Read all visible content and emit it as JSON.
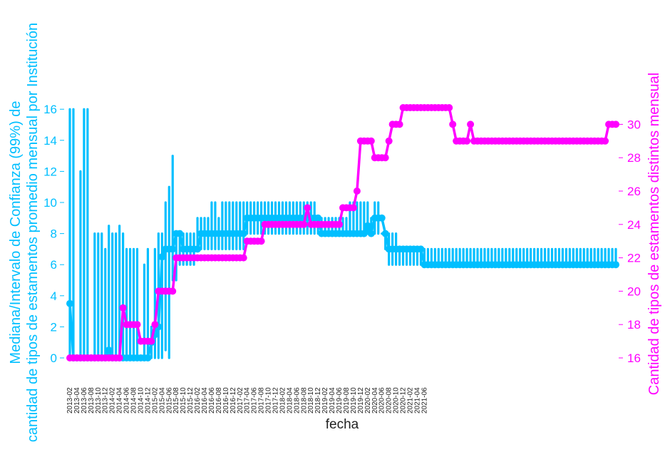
{
  "chart_data": {
    "type": "line",
    "xlabel": "fecha",
    "ylabel_left": "Mediana/Intervalo de Confianza (99%) de\ncantidad de tipos de estamentos promedio mensual por Institución",
    "ylabel_right": "Cantidad de tipos de estamentos distintos mensual",
    "left_yticks": [
      0,
      2,
      4,
      6,
      8,
      10,
      12,
      14,
      16
    ],
    "right_yticks": [
      16,
      18,
      20,
      22,
      24,
      26,
      28,
      30
    ],
    "xtick_labels": [
      "2013-02",
      "2013-04",
      "2013-06",
      "2013-08",
      "2013-10",
      "2013-12",
      "2014-02",
      "2014-04",
      "2014-06",
      "2014-08",
      "2014-10",
      "2014-12",
      "2015-02",
      "2015-04",
      "2015-06",
      "2015-08",
      "2015-10",
      "2015-12",
      "2016-02",
      "2016-04",
      "2016-06",
      "2016-08",
      "2016-10",
      "2016-12",
      "2017-02",
      "2017-04",
      "2017-06",
      "2017-08",
      "2017-10",
      "2017-12",
      "2018-02",
      "2018-04",
      "2018-06",
      "2018-08",
      "2018-10",
      "2018-12",
      "2019-02",
      "2019-04",
      "2019-06",
      "2019-08",
      "2019-10",
      "2019-12",
      "2020-02",
      "2020-04",
      "2020-06",
      "2020-08",
      "2020-10",
      "2020-12",
      "2021-02",
      "2021-04",
      "2021-06"
    ],
    "colors": {
      "median": "#00BFFF",
      "count": "#FF00FF"
    },
    "series": [
      {
        "axis": "left",
        "start": "2013-02",
        "median": [
          3.5,
          0,
          0,
          0,
          0,
          0,
          0,
          0,
          0,
          0,
          0,
          0.5,
          0,
          0,
          0,
          0,
          0,
          0,
          0,
          0,
          0,
          0,
          0,
          1,
          1.5,
          2,
          6.5,
          7,
          7,
          7,
          8,
          8,
          7,
          7,
          7,
          7,
          7,
          8,
          8,
          8,
          8,
          8,
          8,
          8,
          8,
          8,
          8,
          8,
          8,
          8,
          9,
          9,
          9,
          9,
          9,
          9,
          9,
          9,
          9,
          9,
          9,
          9,
          9,
          9,
          9,
          9,
          9,
          9,
          9,
          9,
          9,
          8,
          8,
          8,
          8,
          8,
          8,
          8,
          8,
          8,
          8,
          8,
          8,
          8,
          8.5,
          8,
          9,
          9,
          9,
          8,
          7,
          7,
          7,
          7,
          7,
          7,
          7,
          7,
          7,
          7,
          6,
          6,
          6,
          6,
          6,
          6,
          6,
          6,
          6,
          6,
          6,
          6,
          6,
          6,
          6,
          6,
          6,
          6,
          6,
          6,
          6,
          6,
          6,
          6,
          6,
          6,
          6,
          6,
          6,
          6,
          6,
          6,
          6,
          6,
          6,
          6,
          6,
          6,
          6,
          6,
          6,
          6,
          6,
          6,
          6,
          6,
          6,
          6,
          6,
          6,
          6,
          6,
          6,
          6,
          6
        ],
        "ci_low": [
          0,
          0,
          0,
          0,
          0,
          0,
          0,
          0,
          0,
          0,
          0,
          0,
          0,
          0,
          0,
          0,
          0,
          0,
          0,
          0,
          0,
          0,
          0,
          0,
          0,
          0,
          0,
          0.5,
          0,
          5,
          5,
          6,
          6,
          6,
          6,
          6,
          7,
          7,
          7,
          7,
          7,
          7,
          7,
          7,
          7,
          7,
          7,
          7,
          7,
          7,
          8,
          8,
          8,
          8,
          8,
          8,
          8,
          8,
          8,
          8,
          8,
          8,
          8,
          8,
          8,
          8,
          8,
          8,
          8,
          8,
          8,
          8,
          8,
          8,
          8,
          8,
          8,
          8,
          8,
          8,
          8,
          8,
          8,
          8,
          8,
          8,
          8,
          8,
          8,
          7,
          6,
          6,
          6,
          6,
          6,
          6,
          6,
          6,
          6,
          6,
          6,
          6,
          6,
          6,
          6,
          6,
          6,
          6,
          6,
          6,
          6,
          6,
          6,
          6,
          6,
          6,
          6,
          6,
          6,
          6,
          6,
          6,
          6,
          6,
          6,
          6,
          6,
          6,
          6,
          6,
          6,
          6,
          6,
          6,
          6,
          6,
          6,
          6,
          6,
          6,
          6,
          6,
          6,
          6,
          6,
          6,
          6,
          6,
          6,
          6,
          6,
          6,
          6,
          6,
          6
        ],
        "ci_high": [
          16,
          16,
          0,
          12,
          16,
          16,
          0,
          8,
          8,
          8,
          7,
          8.5,
          8,
          8,
          8.5,
          8,
          7,
          7,
          7,
          7,
          0,
          6,
          7,
          2,
          7,
          8,
          8,
          10,
          11,
          13,
          8,
          8,
          8,
          8,
          8,
          8,
          9,
          9,
          9,
          9,
          10,
          10,
          9,
          10,
          10,
          10,
          10,
          10,
          10,
          10,
          10,
          10,
          10,
          10,
          10,
          10,
          10,
          10,
          10,
          10,
          10,
          10,
          10,
          10,
          10,
          10,
          10,
          10,
          10,
          10,
          9,
          9,
          9,
          9,
          9,
          9,
          9,
          9,
          9,
          10,
          10,
          10,
          10,
          10,
          10,
          9,
          10,
          10,
          8,
          8,
          8,
          8,
          8,
          7,
          7,
          7,
          7,
          7,
          7,
          7,
          7,
          7,
          7,
          7,
          7,
          7,
          7,
          7,
          7,
          7,
          7,
          7,
          7,
          7,
          7,
          7,
          7,
          7,
          7,
          7,
          7,
          7,
          7,
          7,
          7,
          7,
          7,
          7,
          7,
          7,
          7,
          7,
          7,
          7,
          7,
          7,
          7,
          7,
          7,
          7,
          7,
          7,
          7,
          7,
          7,
          7,
          7,
          7,
          7,
          7,
          7,
          7,
          7,
          7,
          7
        ]
      },
      {
        "axis": "right",
        "start": "2013-02",
        "values": [
          16,
          16,
          16,
          16,
          16,
          16,
          16,
          16,
          16,
          16,
          16,
          16,
          16,
          16,
          16,
          19,
          18,
          18,
          18,
          18,
          17,
          17,
          17,
          17,
          18,
          20,
          20,
          20,
          20,
          20,
          22,
          22,
          22,
          22,
          22,
          22,
          22,
          22,
          22,
          22,
          22,
          22,
          22,
          22,
          22,
          22,
          22,
          22,
          22,
          22,
          23,
          23,
          23,
          23,
          23,
          24,
          24,
          24,
          24,
          24,
          24,
          24,
          24,
          24,
          24,
          24,
          24,
          25,
          24,
          24,
          24,
          24,
          24,
          24,
          24,
          24,
          24,
          25,
          25,
          25,
          25,
          26,
          29,
          29,
          29,
          29,
          28,
          28,
          28,
          28,
          29,
          30,
          30,
          30,
          31,
          31,
          31,
          31,
          31,
          31,
          31,
          31,
          31,
          31,
          31,
          31,
          31,
          31,
          30,
          29,
          29,
          29,
          29,
          30,
          29,
          29,
          29,
          29,
          29,
          29,
          29,
          29,
          29,
          29,
          29,
          29,
          29,
          29,
          29,
          29,
          29,
          29,
          29,
          29,
          29,
          29,
          29,
          29,
          29,
          29,
          29,
          29,
          29,
          29,
          29,
          29,
          29,
          29,
          29,
          29,
          29,
          29,
          30,
          30,
          30
        ]
      }
    ]
  }
}
